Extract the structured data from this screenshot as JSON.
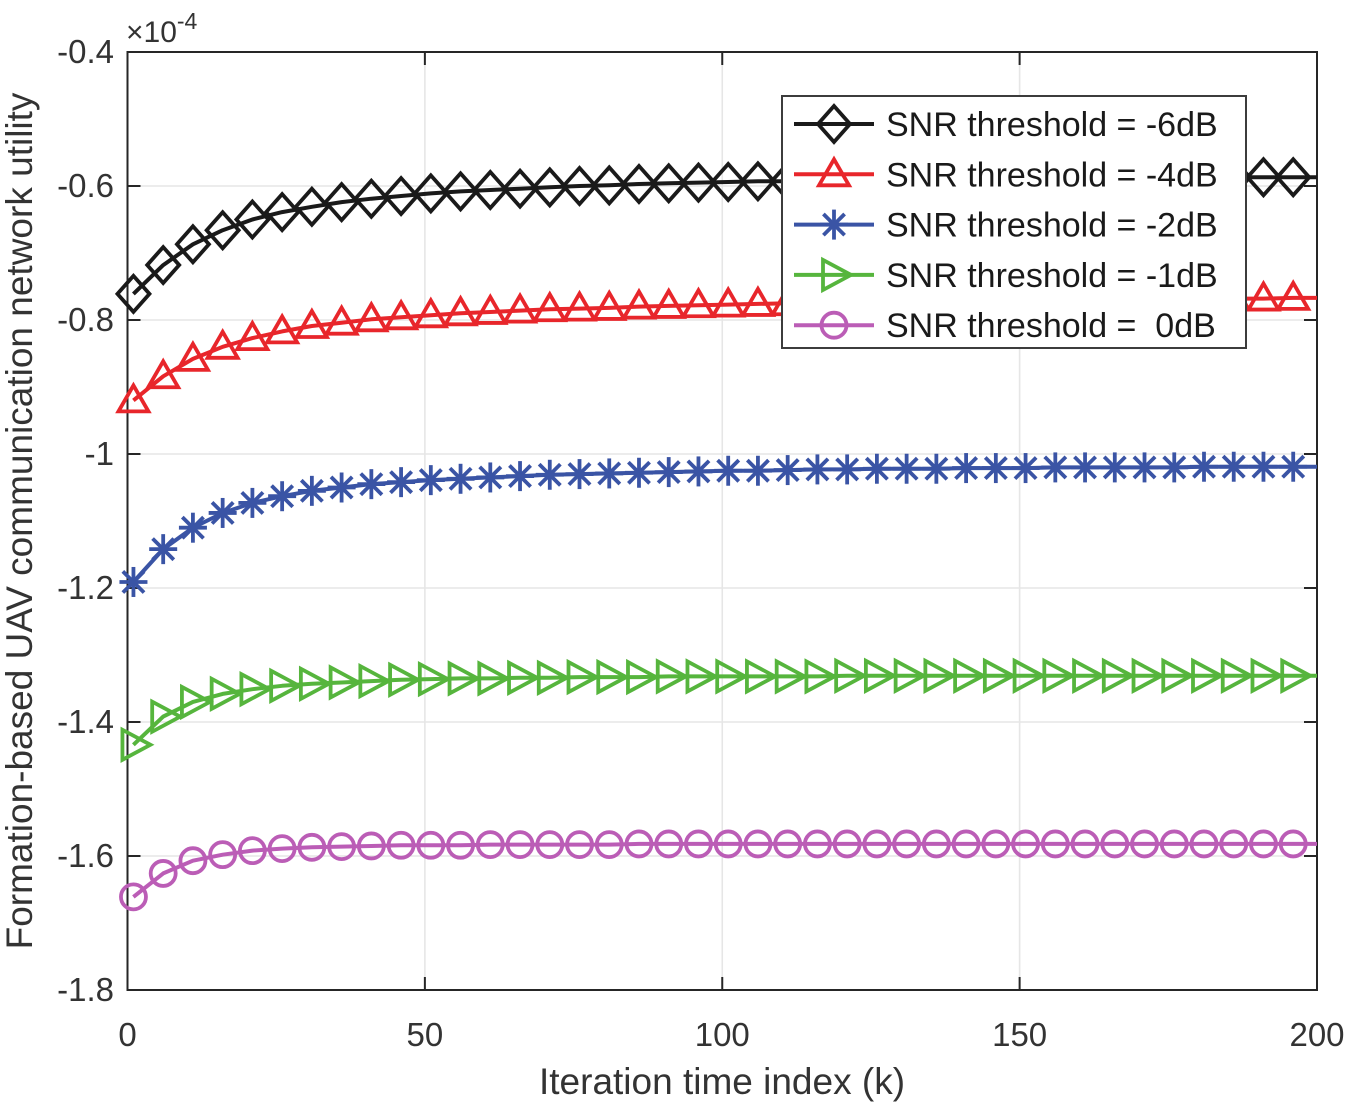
{
  "figure": {
    "background": "#ffffff",
    "axis_color": "#262626",
    "grid_color": "#e6e6e6",
    "text_color": "#333333",
    "legend_border_color": "#3c3c3c",
    "legend_background": "#ffffff"
  },
  "chart_data": {
    "type": "line",
    "title": "",
    "xlabel": "Iteration time index (k)",
    "ylabel": "Formation-based UAV communication network utility",
    "y_exponent": {
      "base": "×10",
      "exp": "-4"
    },
    "y_scale": "1e-4",
    "xlim": [
      0,
      200
    ],
    "ylim": [
      -1.8,
      -0.4
    ],
    "xticks": [
      0,
      50,
      100,
      150,
      200
    ],
    "xtick_labels": [
      "0",
      "50",
      "100",
      "150",
      "200"
    ],
    "yticks": [
      -0.4,
      -0.6,
      -0.8,
      -1.0,
      -1.2,
      -1.4,
      -1.6,
      -1.8
    ],
    "ytick_labels": [
      "-0.4",
      "-0.6",
      "-0.8",
      "-1",
      "-1.2",
      "-1.4",
      "-1.6",
      "-1.8"
    ],
    "grid": true,
    "legend": {
      "position": "top-right-inside",
      "border": true
    },
    "x": [
      1,
      6,
      11,
      16,
      21,
      26,
      31,
      36,
      41,
      46,
      51,
      56,
      61,
      66,
      71,
      76,
      81,
      86,
      91,
      96,
      101,
      106,
      111,
      116,
      121,
      126,
      131,
      136,
      141,
      146,
      151,
      156,
      161,
      166,
      171,
      176,
      181,
      186,
      191,
      196,
      200
    ],
    "series": [
      {
        "name": "SNR threshold = -6dB",
        "color": "#1a1a1a",
        "marker": "diamond",
        "values": [
          -0.761,
          -0.718,
          -0.687,
          -0.666,
          -0.65,
          -0.639,
          -0.631,
          -0.624,
          -0.619,
          -0.615,
          -0.611,
          -0.608,
          -0.606,
          -0.604,
          -0.602,
          -0.6,
          -0.599,
          -0.597,
          -0.596,
          -0.595,
          -0.594,
          -0.593,
          -0.593,
          -0.592,
          -0.591,
          -0.591,
          -0.59,
          -0.59,
          -0.59,
          -0.589,
          -0.589,
          -0.589,
          -0.588,
          -0.588,
          -0.588,
          -0.588,
          -0.588,
          -0.587,
          -0.587,
          -0.587,
          -0.587
        ]
      },
      {
        "name": "SNR threshold = -4dB",
        "color": "#e8262b",
        "marker": "triangle-up",
        "values": [
          -0.92,
          -0.884,
          -0.858,
          -0.84,
          -0.827,
          -0.817,
          -0.809,
          -0.804,
          -0.799,
          -0.796,
          -0.793,
          -0.79,
          -0.788,
          -0.786,
          -0.784,
          -0.783,
          -0.782,
          -0.78,
          -0.779,
          -0.778,
          -0.777,
          -0.776,
          -0.775,
          -0.775,
          -0.774,
          -0.773,
          -0.772,
          -0.772,
          -0.771,
          -0.771,
          -0.77,
          -0.77,
          -0.77,
          -0.769,
          -0.769,
          -0.768,
          -0.768,
          -0.768,
          -0.768,
          -0.767,
          -0.767
        ]
      },
      {
        "name": "SNR threshold = -2dB",
        "color": "#3a54a5",
        "marker": "asterisk",
        "values": [
          -1.191,
          -1.142,
          -1.11,
          -1.088,
          -1.073,
          -1.063,
          -1.055,
          -1.05,
          -1.045,
          -1.042,
          -1.039,
          -1.037,
          -1.035,
          -1.033,
          -1.031,
          -1.03,
          -1.029,
          -1.028,
          -1.027,
          -1.026,
          -1.025,
          -1.025,
          -1.024,
          -1.023,
          -1.023,
          -1.022,
          -1.022,
          -1.022,
          -1.021,
          -1.021,
          -1.021,
          -1.02,
          -1.02,
          -1.02,
          -1.02,
          -1.02,
          -1.019,
          -1.019,
          -1.019,
          -1.019,
          -1.019
        ]
      },
      {
        "name": "SNR threshold = -1dB",
        "color": "#56b53d",
        "marker": "triangle-right",
        "values": [
          -1.434,
          -1.392,
          -1.37,
          -1.358,
          -1.351,
          -1.346,
          -1.343,
          -1.341,
          -1.339,
          -1.337,
          -1.336,
          -1.335,
          -1.335,
          -1.334,
          -1.334,
          -1.333,
          -1.333,
          -1.333,
          -1.332,
          -1.332,
          -1.332,
          -1.332,
          -1.332,
          -1.332,
          -1.331,
          -1.331,
          -1.331,
          -1.331,
          -1.331,
          -1.331,
          -1.331,
          -1.331,
          -1.331,
          -1.331,
          -1.331,
          -1.331,
          -1.331,
          -1.331,
          -1.331,
          -1.331,
          -1.331
        ]
      },
      {
        "name": "SNR threshold =  0dB",
        "color": "#bb5db6",
        "marker": "circle",
        "values": [
          -1.661,
          -1.626,
          -1.607,
          -1.598,
          -1.592,
          -1.589,
          -1.587,
          -1.586,
          -1.585,
          -1.584,
          -1.584,
          -1.584,
          -1.583,
          -1.583,
          -1.583,
          -1.583,
          -1.583,
          -1.582,
          -1.582,
          -1.582,
          -1.582,
          -1.582,
          -1.582,
          -1.582,
          -1.582,
          -1.582,
          -1.582,
          -1.582,
          -1.582,
          -1.582,
          -1.582,
          -1.582,
          -1.582,
          -1.582,
          -1.582,
          -1.582,
          -1.582,
          -1.582,
          -1.582,
          -1.582,
          -1.582
        ]
      }
    ]
  }
}
